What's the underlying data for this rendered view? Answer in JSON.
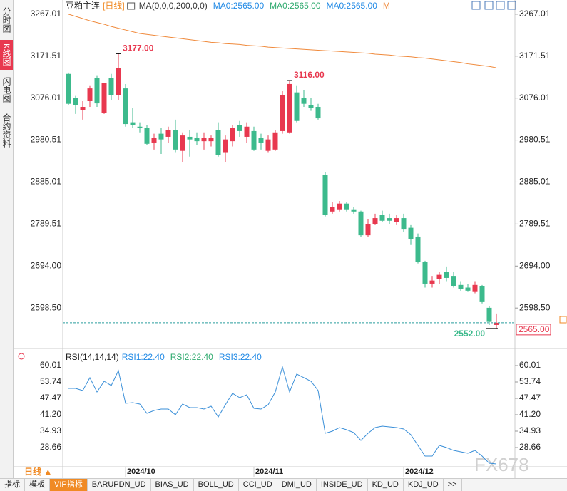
{
  "sidebar_tabs": [
    "分时图",
    "K线图",
    "闪电图",
    "合约资料"
  ],
  "chart_data": [
    {
      "type": "candlestick",
      "title": "豆粕主连",
      "period": "[日线]",
      "legend": [
        {
          "text": "MA(0,0,0,200,0,0)",
          "color": "#333333"
        },
        {
          "text": "MA0:2565.00",
          "color": "#1e88e5"
        },
        {
          "text": "MA0:2565.00",
          "color": "#2eaa6e"
        },
        {
          "text": "MA0:2565.00",
          "color": "#1e88e5"
        },
        {
          "text": "M",
          "color": "#f08a3c"
        }
      ],
      "categories": [
        null,
        null,
        null,
        null,
        null,
        null,
        null,
        null,
        "2024/10",
        null,
        null,
        null,
        null,
        null,
        null,
        null,
        null,
        null,
        null,
        null,
        null,
        null,
        null,
        null,
        null,
        null,
        "2024/11",
        null,
        null,
        null,
        null,
        null,
        null,
        null,
        null,
        null,
        null,
        null,
        null,
        null,
        null,
        null,
        null,
        null,
        null,
        null,
        null,
        "2024/12",
        null,
        null,
        null,
        null,
        null,
        null,
        null,
        null,
        null,
        null,
        null,
        null,
        null
      ],
      "open": [
        3131,
        3076,
        3048,
        3069,
        3121,
        3043,
        3121,
        3082,
        3098,
        3021,
        3011,
        3008,
        2975,
        2995,
        2988,
        3004,
        2956,
        2988,
        2985,
        2978,
        2978,
        3004,
        2953,
        2978,
        3014,
        2988,
        3001,
        2985,
        2956,
        2959,
        3001,
        2998,
        3089,
        3076,
        3060,
        3056,
        2901,
        2818,
        2823,
        2836,
        2823,
        2818,
        2764,
        2790,
        2810,
        2803,
        2794,
        2803,
        2781,
        2761,
        2703,
        2654,
        2664,
        2680,
        2670,
        2651,
        2645,
        2635,
        2648,
        2599,
        2560
      ],
      "high": [
        3134,
        3081,
        3069,
        3105,
        3128,
        3111,
        3131,
        3177,
        3108,
        3053,
        3021,
        3014,
        2995,
        3008,
        3011,
        3027,
        2998,
        3004,
        2998,
        2998,
        2991,
        3021,
        2991,
        3014,
        3024,
        3021,
        3011,
        2995,
        2991,
        3004,
        3092,
        3116,
        3105,
        3095,
        3076,
        3063,
        2907,
        2839,
        2842,
        2839,
        2829,
        2820,
        2800,
        2813,
        2820,
        2813,
        2810,
        2813,
        2787,
        2768,
        2706,
        2670,
        2680,
        2693,
        2680,
        2658,
        2654,
        2658,
        2651,
        2602,
        2586
      ],
      "low": [
        3060,
        3040,
        3027,
        3056,
        3056,
        3040,
        3072,
        3072,
        3011,
        3008,
        2998,
        2969,
        2959,
        2949,
        2975,
        2953,
        2930,
        2943,
        2969,
        2959,
        2966,
        2943,
        2930,
        2966,
        2988,
        2975,
        2956,
        2959,
        2953,
        2956,
        2995,
        2995,
        3021,
        3056,
        3047,
        3027,
        2807,
        2813,
        2818,
        2818,
        2813,
        2761,
        2761,
        2787,
        2794,
        2790,
        2787,
        2771,
        2742,
        2700,
        2645,
        2645,
        2654,
        2658,
        2645,
        2638,
        2635,
        2632,
        2609,
        2560,
        2552
      ],
      "close": [
        3063,
        3060,
        3056,
        3098,
        3064,
        3111,
        3082,
        3145,
        3017,
        3014,
        3008,
        2972,
        2985,
        2982,
        3004,
        2959,
        2991,
        2982,
        2978,
        2985,
        2985,
        2946,
        2982,
        3008,
        3001,
        3011,
        2959,
        2975,
        2982,
        2998,
        3082,
        3108,
        3024,
        3063,
        3053,
        3030,
        2810,
        2829,
        2836,
        2823,
        2818,
        2764,
        2790,
        2803,
        2797,
        2797,
        2803,
        2777,
        2755,
        2703,
        2654,
        2661,
        2674,
        2667,
        2648,
        2641,
        2638,
        2651,
        2612,
        2567,
        2565
      ],
      "up_color": "#e8384f",
      "down_color": "#3cba8c",
      "ma": {
        "values": [
          3267,
          3262,
          3257,
          3252,
          3248,
          3244,
          3239,
          3235,
          3231,
          3227,
          3223,
          3221,
          3219,
          3217,
          3215,
          3213,
          3211,
          3209,
          3207,
          3205,
          3203,
          3202,
          3200,
          3199,
          3198,
          3196,
          3195,
          3194,
          3192,
          3191,
          3190,
          3189,
          3188,
          3187,
          3186,
          3185,
          3184,
          3183,
          3182,
          3181,
          3180,
          3179,
          3178,
          3176,
          3175,
          3174,
          3172,
          3171,
          3170,
          3168,
          3167,
          3165,
          3163,
          3161,
          3159,
          3157,
          3154,
          3152,
          3150,
          3148,
          3145
        ],
        "color": "#f08a3c"
      },
      "annotations": [
        {
          "value": 3177,
          "label": "3177.00"
        },
        {
          "value": 3116,
          "label": "3116.00"
        },
        {
          "value": 2552,
          "label": "2552.00"
        }
      ],
      "last_price": {
        "value": 2565,
        "label": "2565.00"
      },
      "ylim": [
        2521,
        3283
      ],
      "yticks": [
        3267.01,
        3171.51,
        3076.01,
        2980.51,
        2885.01,
        2789.51,
        {
          "value": 2694,
          "label": "2694.00"
        },
        {
          "value": 2598.5,
          "label": "2598.50"
        }
      ]
    },
    {
      "type": "line",
      "title": "RSI(14,14,14)",
      "legend": [
        {
          "text": "RSI1:22.40",
          "color": "#1e88e5"
        },
        {
          "text": "RSI2:22.40",
          "color": "#2eaa6e"
        },
        {
          "text": "RSI3:22.40",
          "color": "#1e88e5"
        }
      ],
      "values": [
        51.29,
        51.29,
        50.47,
        55.38,
        49.92,
        54.01,
        52.38,
        58.1,
        45.56,
        45.83,
        45.29,
        41.74,
        42.83,
        43.38,
        43.38,
        41.2,
        45.29,
        43.93,
        43.93,
        43.38,
        44.47,
        40.38,
        45.02,
        49.38,
        47.74,
        48.83,
        43.65,
        43.38,
        45.02,
        49.92,
        59.46,
        49.92,
        56.74,
        55.38,
        54.01,
        50.47,
        34.11,
        34.93,
        36.29,
        35.47,
        34.38,
        31.38,
        34.11,
        36.29,
        36.84,
        36.56,
        36.29,
        35.74,
        33.56,
        29.48,
        25.39,
        25.39,
        29.48,
        28.66,
        27.57,
        27.02,
        26.48,
        27.57,
        25.39,
        22.67,
        22.4
      ],
      "color": "#3a8fd8",
      "ylim": [
        21.3,
        63.55
      ],
      "yticks": [
        60.01,
        53.74,
        47.47,
        {
          "value": 41.2,
          "label": "41.20"
        },
        34.93,
        28.66
      ]
    }
  ],
  "period_selector": "日线 ▲",
  "watermark": "FX678",
  "tabs": [
    "指标",
    "模板",
    "VIP指标",
    "BARUPDN_UD",
    "BIAS_UD",
    "BOLL_UD",
    "CCI_UD",
    "DMI_UD",
    "INSIDE_UD",
    "KD_UD",
    "KDJ_UD",
    ">>"
  ]
}
